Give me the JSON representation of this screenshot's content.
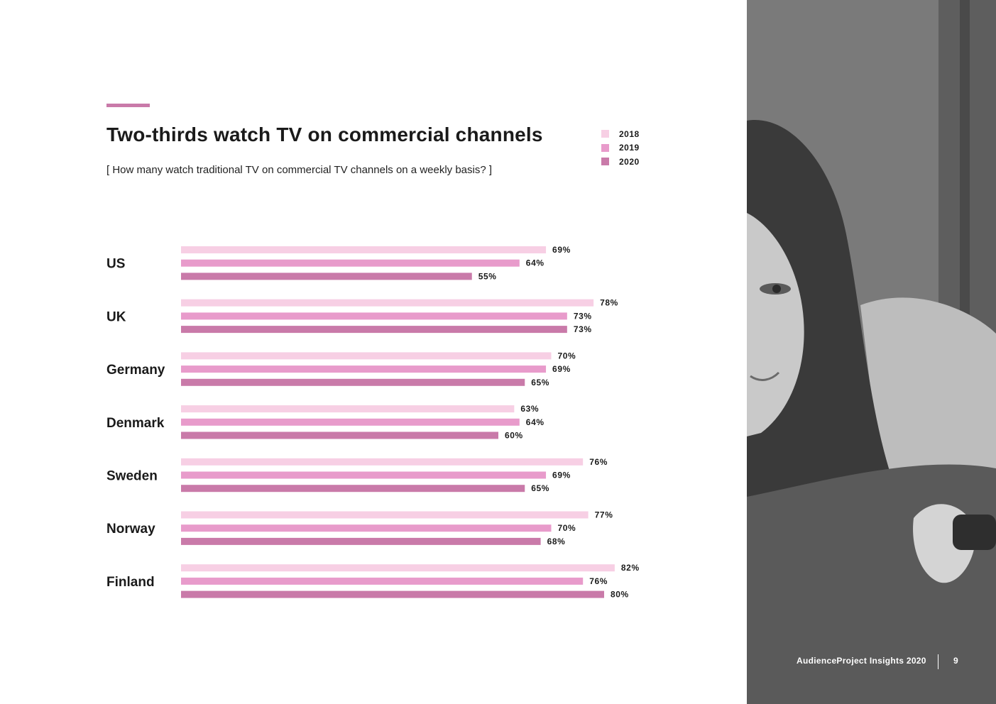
{
  "header": {
    "title": "Two-thirds watch TV on commercial channels",
    "subtitle": "[ How many watch traditional TV on commercial TV channels on a weekly basis? ]"
  },
  "legend": [
    {
      "label": "2018",
      "color": "#f7cfe4"
    },
    {
      "label": "2019",
      "color": "#e89bcb"
    },
    {
      "label": "2020",
      "color": "#c97aa9"
    }
  ],
  "chart_data": {
    "type": "bar",
    "orientation": "horizontal",
    "title": "Two-thirds watch TV on commercial channels",
    "subtitle": "[ How many watch traditional TV on commercial TV channels on a weekly basis? ]",
    "categories": [
      "US",
      "UK",
      "Germany",
      "Denmark",
      "Sweden",
      "Norway",
      "Finland"
    ],
    "series": [
      {
        "name": "2018",
        "color": "#f7cfe4",
        "values": [
          69,
          78,
          70,
          63,
          76,
          77,
          82
        ]
      },
      {
        "name": "2019",
        "color": "#e89bcb",
        "values": [
          64,
          73,
          69,
          64,
          69,
          70,
          76
        ]
      },
      {
        "name": "2020",
        "color": "#c97aa9",
        "values": [
          55,
          73,
          65,
          60,
          65,
          68,
          80
        ]
      }
    ],
    "value_suffix": "%",
    "xlim": [
      0,
      100
    ],
    "grid": false,
    "legend_position": "top-right"
  },
  "photo": {
    "description_icon": "woman-with-remote-photo"
  },
  "footer": {
    "publication": "AudienceProject Insights 2020",
    "page_number": "9"
  }
}
